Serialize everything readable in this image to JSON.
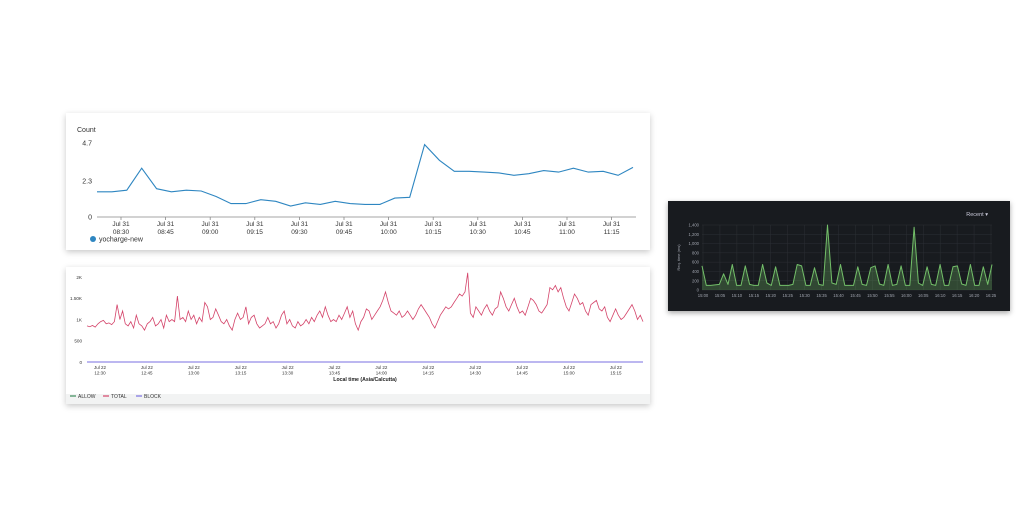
{
  "chart_data": [
    {
      "type": "line",
      "ylabel": "Count",
      "ytick_labels": [
        "4.7",
        "2.3",
        "0"
      ],
      "yticks": [
        4.7,
        2.3,
        0
      ],
      "ylim": [
        0,
        4.7
      ],
      "x_ticks": [
        {
          "date": "Jul 31",
          "time": "08:30"
        },
        {
          "date": "Jul 31",
          "time": "08:45"
        },
        {
          "date": "Jul 31",
          "time": "09:00"
        },
        {
          "date": "Jul 31",
          "time": "09:15"
        },
        {
          "date": "Jul 31",
          "time": "09:30"
        },
        {
          "date": "Jul 31",
          "time": "09:45"
        },
        {
          "date": "Jul 31",
          "time": "10:00"
        },
        {
          "date": "Jul 31",
          "time": "10:15"
        },
        {
          "date": "Jul 31",
          "time": "10:30"
        },
        {
          "date": "Jul 31",
          "time": "10:45"
        },
        {
          "date": "Jul 31",
          "time": "11:00"
        },
        {
          "date": "Jul 31",
          "time": "11:15"
        }
      ],
      "series": [
        {
          "name": "yocharge-new",
          "color": "#2e86c1",
          "values": [
            1.6,
            1.6,
            1.7,
            3.1,
            1.8,
            1.6,
            1.7,
            1.65,
            1.3,
            0.85,
            0.85,
            1.1,
            1.0,
            0.7,
            0.9,
            0.8,
            1.0,
            0.85,
            0.8,
            0.8,
            1.2,
            1.25,
            4.6,
            3.6,
            2.9,
            2.9,
            2.85,
            2.8,
            2.65,
            2.75,
            2.95,
            2.85,
            3.1,
            2.85,
            2.9,
            2.65,
            3.15
          ]
        }
      ],
      "legend_position": "bottom-left",
      "grid": false
    },
    {
      "type": "line",
      "xlabel": "Local time (Asia/Calcutta)",
      "ytick_labels": [
        "2K",
        "1.50K",
        "1K",
        "500",
        "0"
      ],
      "yticks": [
        2000,
        1500,
        1000,
        500,
        0
      ],
      "ylim": [
        0,
        2000
      ],
      "x_ticks": [
        {
          "date": "Jul 22",
          "time": "12:30"
        },
        {
          "date": "Jul 22",
          "time": "12:45"
        },
        {
          "date": "Jul 22",
          "time": "13:00"
        },
        {
          "date": "Jul 22",
          "time": "13:15"
        },
        {
          "date": "Jul 22",
          "time": "13:30"
        },
        {
          "date": "Jul 22",
          "time": "13:45"
        },
        {
          "date": "Jul 22",
          "time": "14:00"
        },
        {
          "date": "Jul 22",
          "time": "14:15"
        },
        {
          "date": "Jul 22",
          "time": "14:30"
        },
        {
          "date": "Jul 22",
          "time": "14:45"
        },
        {
          "date": "Jul 22",
          "time": "15:00"
        },
        {
          "date": "Jul 22",
          "time": "15:15"
        }
      ],
      "legend": [
        {
          "name": "ALLOW",
          "color": "#3c8c5a"
        },
        {
          "name": "TOTAL",
          "color": "#d4446a"
        },
        {
          "name": "BLOCK",
          "color": "#7a6fe0"
        }
      ],
      "series": [
        {
          "name": "TOTAL",
          "color": "#d4446a",
          "values": [
            850,
            830,
            860,
            820,
            900,
            950,
            980,
            900,
            920,
            880,
            950,
            1350,
            1000,
            1200,
            900,
            850,
            950,
            800,
            1100,
            900,
            850,
            750,
            900,
            950,
            1050,
            850,
            900,
            1000,
            800,
            1100,
            950,
            1000,
            950,
            1550,
            1000,
            1050,
            950,
            1200,
            1000,
            1100,
            900,
            1050,
            950,
            1400,
            1300,
            1000,
            1050,
            1250,
            1100,
            950,
            900,
            1000,
            850,
            750,
            1000,
            1150,
            1000,
            1050,
            1300,
            900,
            1050,
            1100,
            900,
            800,
            850,
            900,
            1050,
            900,
            950,
            800,
            900,
            1100,
            1200,
            900,
            1000,
            850,
            800,
            950,
            850,
            900,
            1000,
            900,
            1050,
            950,
            1100,
            1200,
            1050,
            1300,
            1100,
            950,
            1000,
            950,
            1100,
            1000,
            1150,
            1300,
            1050,
            1200,
            900,
            750,
            950,
            1050,
            1250,
            1200,
            1000,
            1100,
            1200,
            1300,
            1450,
            1650,
            1400,
            1200,
            1150,
            1100,
            1200,
            1050,
            1100,
            1200,
            1100,
            1000,
            1100,
            1250,
            1350,
            1250,
            1150,
            1050,
            900,
            800,
            950,
            1100,
            1200,
            1300,
            1250,
            1300,
            1400,
            1500,
            1600,
            1550,
            1650,
            2100,
            1150,
            1050,
            1300,
            1200,
            1100,
            1250,
            1350,
            1200,
            1100,
            1250,
            1300,
            1650,
            1500,
            1300,
            1200,
            1350,
            1500,
            1300,
            1150,
            1200,
            1100,
            1300,
            1500,
            1450,
            1350,
            1200,
            1150,
            1250,
            1350,
            1750,
            1700,
            1800,
            1650,
            1750,
            1500,
            1300,
            1200,
            1400,
            1600,
            1500,
            1350,
            1400,
            1200,
            1100,
            1350,
            1400,
            1450,
            1250,
            1200,
            1300,
            1050,
            950,
            1100,
            1250,
            1100,
            1000,
            1050,
            1150,
            1250,
            1350,
            1200,
            1000,
            1100,
            950
          ]
        },
        {
          "name": "BLOCK",
          "color": "#7a6fe0",
          "values": [
            0,
            0
          ]
        }
      ],
      "legend_position": "bottom-left",
      "grid": false
    },
    {
      "type": "area",
      "ylabel": "Req. time (ms)",
      "ytick_labels": [
        "1,400",
        "1,200",
        "1,000",
        "800",
        "600",
        "400",
        "200",
        "0"
      ],
      "yticks": [
        1400,
        1200,
        1000,
        800,
        600,
        400,
        200,
        0
      ],
      "ylim": [
        0,
        1400
      ],
      "xtick_labels": [
        "15:00",
        "15:05",
        "15:10",
        "15:15",
        "15:20",
        "15:25",
        "15:30",
        "15:35",
        "15:40",
        "15:45",
        "15:50",
        "15:55",
        "16:00",
        "16:05",
        "16:10",
        "16:15",
        "16:20",
        "16:25"
      ],
      "time_range_label": "Recent",
      "color": "#73bf69",
      "background": "#181b1f",
      "values": [
        520,
        100,
        100,
        110,
        120,
        350,
        120,
        550,
        100,
        100,
        520,
        120,
        100,
        100,
        550,
        150,
        100,
        500,
        100,
        100,
        100,
        120,
        550,
        520,
        100,
        100,
        480,
        120,
        100,
        1400,
        150,
        120,
        550,
        100,
        100,
        100,
        500,
        120,
        100,
        480,
        520,
        130,
        100,
        550,
        100,
        120,
        520,
        100,
        100,
        1350,
        150,
        100,
        500,
        120,
        100,
        550,
        100,
        100,
        500,
        520,
        130,
        100,
        550,
        100,
        100,
        500,
        120,
        550
      ],
      "grid": true
    }
  ]
}
